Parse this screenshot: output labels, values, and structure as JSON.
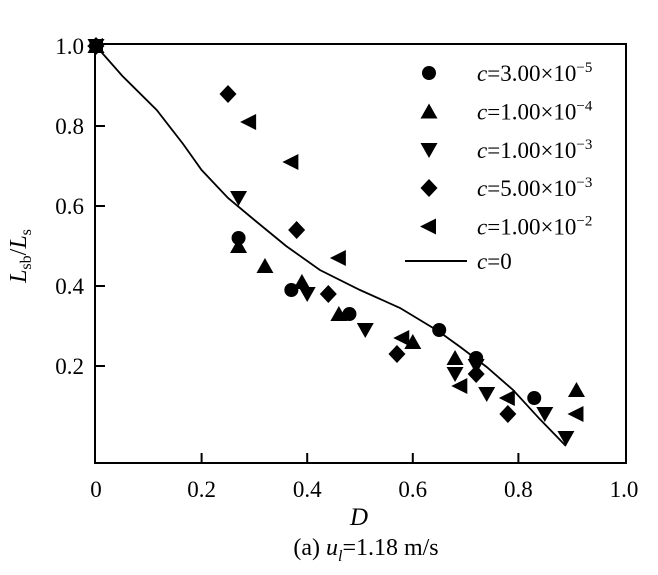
{
  "figure": {
    "xlabel": "D",
    "ylabel_parts": {
      "L1": "L",
      "sub1": "sb",
      "slash": "/",
      "L2": "L",
      "sub2": "s"
    },
    "caption_parts": {
      "prefix": "(a) ",
      "u": "u",
      "sub": "l",
      "rest": "=1.18 m/s"
    }
  },
  "colors": {
    "foreground": "#000000",
    "background": "#ffffff"
  },
  "chart_data": {
    "type": "scatter",
    "title": "",
    "xlabel": "D",
    "ylabel": "Lsb/Ls",
    "xlim": [
      0,
      1.0
    ],
    "ylim": [
      -0.045,
      1.01
    ],
    "grid": false,
    "legend_position": "upper-right-inside",
    "x_ticks": [
      {
        "v": 0,
        "label": "0"
      },
      {
        "v": 0.2,
        "label": "0.2"
      },
      {
        "v": 0.4,
        "label": "0.4"
      },
      {
        "v": 0.6,
        "label": "0.6"
      },
      {
        "v": 0.8,
        "label": "0.8"
      },
      {
        "v": 1.0,
        "label": "1.0"
      }
    ],
    "y_ticks": [
      {
        "v": 0.2,
        "label": "0.2"
      },
      {
        "v": 0.4,
        "label": "0.4"
      },
      {
        "v": 0.6,
        "label": "0.6"
      },
      {
        "v": 0.8,
        "label": "0.8"
      },
      {
        "v": 1.0,
        "label": "1.0"
      }
    ],
    "series": [
      {
        "name": "c=3.00×10−5",
        "marker": "circle",
        "points": [
          [
            0,
            1.0
          ],
          [
            0.27,
            0.52
          ],
          [
            0.37,
            0.39
          ],
          [
            0.48,
            0.33
          ],
          [
            0.65,
            0.29
          ],
          [
            0.72,
            0.22
          ],
          [
            0.83,
            0.12
          ]
        ]
      },
      {
        "name": "c=1.00×10−4",
        "marker": "triangle-up",
        "points": [
          [
            0,
            1.0
          ],
          [
            0.27,
            0.5
          ],
          [
            0.32,
            0.45
          ],
          [
            0.39,
            0.41
          ],
          [
            0.46,
            0.33
          ],
          [
            0.6,
            0.26
          ],
          [
            0.68,
            0.22
          ],
          [
            0.91,
            0.14
          ]
        ]
      },
      {
        "name": "c=1.00×10−3",
        "marker": "triangle-down",
        "points": [
          [
            0,
            1.0
          ],
          [
            0.27,
            0.62
          ],
          [
            0.4,
            0.38
          ],
          [
            0.51,
            0.29
          ],
          [
            0.68,
            0.18
          ],
          [
            0.72,
            0.2
          ],
          [
            0.74,
            0.13
          ],
          [
            0.85,
            0.08
          ],
          [
            0.89,
            0.02
          ]
        ]
      },
      {
        "name": "c=5.00×10−3",
        "marker": "diamond",
        "points": [
          [
            0,
            1.0
          ],
          [
            0.25,
            0.88
          ],
          [
            0.38,
            0.54
          ],
          [
            0.44,
            0.38
          ],
          [
            0.57,
            0.23
          ],
          [
            0.72,
            0.18
          ],
          [
            0.78,
            0.08
          ]
        ]
      },
      {
        "name": "c=1.00×10−2",
        "marker": "triangle-left",
        "points": [
          [
            0,
            1.0
          ],
          [
            0.29,
            0.81
          ],
          [
            0.37,
            0.71
          ],
          [
            0.46,
            0.47
          ],
          [
            0.58,
            0.27
          ],
          [
            0.69,
            0.15
          ],
          [
            0.78,
            0.12
          ],
          [
            0.91,
            0.08
          ]
        ]
      },
      {
        "name": "c=0",
        "marker": "line",
        "points": [
          [
            0,
            1.0
          ],
          [
            0.05,
            0.925
          ],
          [
            0.115,
            0.84
          ],
          [
            0.165,
            0.755
          ],
          [
            0.2,
            0.69
          ],
          [
            0.25,
            0.62
          ],
          [
            0.3,
            0.565
          ],
          [
            0.36,
            0.5
          ],
          [
            0.424,
            0.44
          ],
          [
            0.5,
            0.39
          ],
          [
            0.576,
            0.345
          ],
          [
            0.648,
            0.2875
          ],
          [
            0.69,
            0.2475
          ],
          [
            0.74,
            0.1975
          ],
          [
            0.79,
            0.14
          ],
          [
            0.84,
            0.068
          ],
          [
            0.89,
            0.0
          ]
        ]
      }
    ],
    "legend_items": [
      {
        "marker": "circle",
        "c": "c",
        "rest": "=3.00×10",
        "exp": "−5"
      },
      {
        "marker": "triangle-up",
        "c": "c",
        "rest": "=1.00×10",
        "exp": "−4"
      },
      {
        "marker": "triangle-down",
        "c": "c",
        "rest": "=1.00×10",
        "exp": "−3"
      },
      {
        "marker": "diamond",
        "c": "c",
        "rest": "=5.00×10",
        "exp": "−3"
      },
      {
        "marker": "triangle-left",
        "c": "c",
        "rest": "=1.00×10",
        "exp": "−2"
      },
      {
        "marker": "line",
        "c": "c",
        "rest": "=0",
        "exp": ""
      }
    ]
  }
}
